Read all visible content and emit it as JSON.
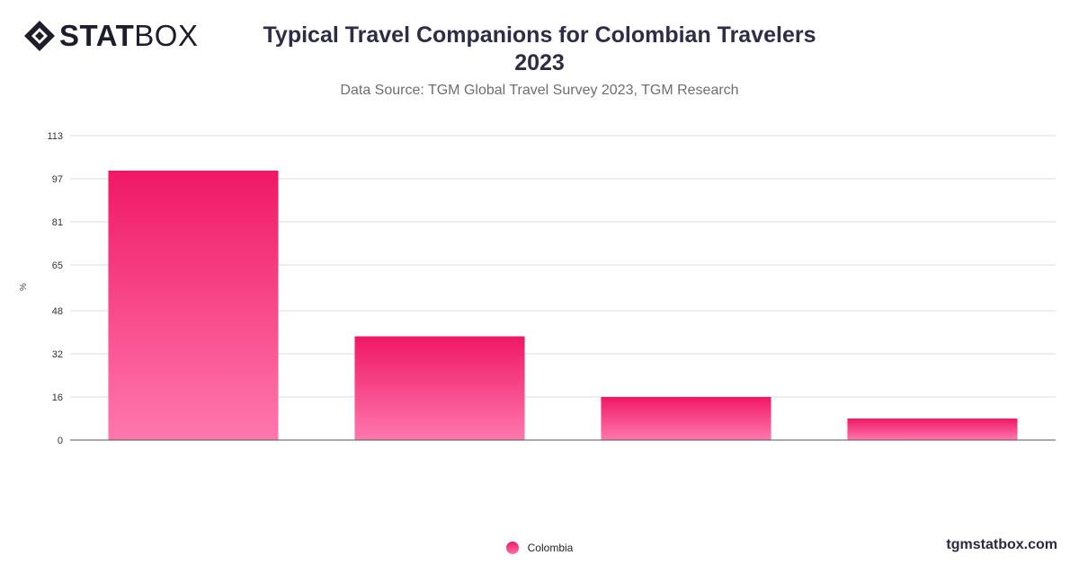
{
  "brand": {
    "logo_part1": "STAT",
    "logo_part2": "BOX",
    "site": "tgmstatbox.com"
  },
  "title_line1": "Typical Travel Companions for Colombian Travelers",
  "title_line2": "2023",
  "subtitle": "Data Source: TGM Global Travel Survey 2023, TGM Research",
  "colors": {
    "bar_top": "#f01866",
    "bar_bottom": "#ff78ad",
    "grid": "#dcdcdc",
    "axis": "#555555"
  },
  "chart_data": {
    "type": "bar",
    "title": "Typical Travel Companions for Colombian Travelers 2023",
    "ylabel": "%",
    "categories": [
      "",
      "",
      "",
      ""
    ],
    "series": [
      {
        "name": "Colombia",
        "values": [
          100,
          38.5,
          16,
          8
        ]
      }
    ],
    "ylim": [
      0,
      113
    ],
    "yticks": [
      "0",
      "16",
      "32",
      "48",
      "65",
      "81",
      "97",
      "113"
    ],
    "grid": true,
    "legend": "bottom-center"
  }
}
